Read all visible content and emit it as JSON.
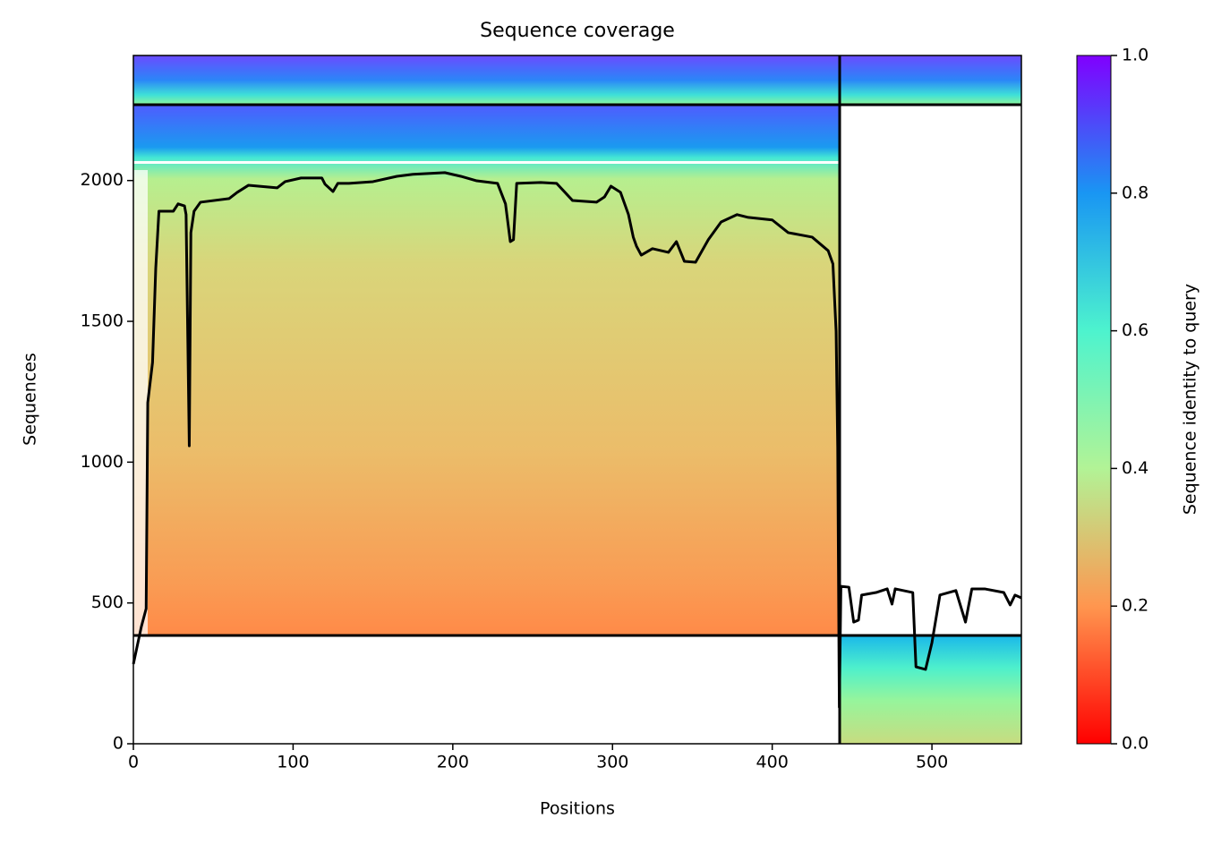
{
  "chart_data": {
    "type": "line",
    "title": "Sequence coverage",
    "xlabel": "Positions",
    "ylabel": "Sequences",
    "xlim": [
      0,
      556
    ],
    "ylim": [
      0,
      2444
    ],
    "xticks": [
      0,
      100,
      200,
      300,
      400,
      500
    ],
    "yticks": [
      0,
      500,
      1000,
      1500,
      2000
    ],
    "colorbar": {
      "label": "Sequence identity to query",
      "lim": [
        0,
        1
      ],
      "ticks": [
        {
          "value": 0,
          "label": "0.0"
        },
        0.2,
        0.4,
        0.6,
        0.8,
        {
          "value": 1,
          "label": "1.0"
        }
      ]
    },
    "series": [
      {
        "color": "#000000",
        "x": [
          0,
          5,
          8,
          9,
          12,
          14,
          16,
          25,
          28,
          32,
          33,
          35,
          36,
          38,
          42,
          60,
          65,
          72,
          90,
          95,
          105,
          118,
          120,
          125,
          128,
          135,
          150,
          165,
          175,
          195,
          205,
          215,
          228,
          233,
          236,
          238,
          240,
          255,
          265,
          275,
          290,
          295,
          299,
          305,
          310,
          313,
          315,
          318,
          325,
          335,
          340,
          345,
          352,
          360,
          368,
          378,
          385,
          400,
          410,
          425,
          435,
          438,
          440,
          441,
          442,
          443,
          448,
          451,
          454,
          456,
          465,
          472,
          475,
          477,
          488,
          490,
          496,
          500,
          505,
          515,
          521,
          525,
          533,
          545,
          549,
          552,
          556
        ],
        "values": [
          283,
          416,
          480,
          1211,
          1354,
          1688,
          1891,
          1891,
          1917,
          1910,
          1879,
          1058,
          1815,
          1891,
          1923,
          1936,
          1958,
          1983,
          1974,
          1996,
          2009,
          2009,
          1987,
          1961,
          1990,
          1990,
          1996,
          2015,
          2022,
          2028,
          2015,
          1999,
          1990,
          1917,
          1783,
          1790,
          1990,
          1993,
          1990,
          1929,
          1923,
          1942,
          1980,
          1958,
          1879,
          1799,
          1767,
          1735,
          1758,
          1745,
          1783,
          1713,
          1710,
          1790,
          1853,
          1879,
          1869,
          1860,
          1815,
          1799,
          1751,
          1704,
          1465,
          1052,
          130,
          559,
          556,
          432,
          439,
          528,
          537,
          550,
          496,
          550,
          537,
          273,
          264,
          359,
          528,
          544,
          432,
          550,
          550,
          537,
          493,
          528,
          518
        ]
      }
    ]
  }
}
